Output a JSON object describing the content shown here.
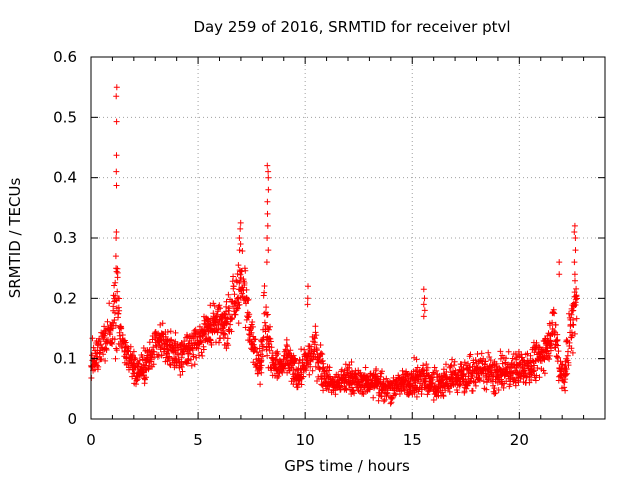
{
  "chart_data": {
    "type": "scatter",
    "title": "Day 259 of 2016, SRMTID for receiver ptvl",
    "xlabel": "GPS time / hours",
    "ylabel": "SRMTID / TECUs",
    "xlim": [
      0,
      24
    ],
    "ylim": [
      0,
      0.6
    ],
    "xticks": [
      0,
      5,
      10,
      15,
      20
    ],
    "yticks": [
      0,
      0.1,
      0.2,
      0.3,
      0.4,
      0.5,
      0.6
    ],
    "xtick_labels": [
      "0",
      "5",
      "10",
      "15",
      "20"
    ],
    "ytick_labels": [
      "0",
      "0.1",
      "0.2",
      "0.3",
      "0.4",
      "0.5",
      "0.6"
    ],
    "grid": true,
    "marker": "+",
    "series": [
      {
        "name": "SRMTID",
        "color": "#ff0000",
        "profile_description": "baseline level (TECU) and spread vs. GPS hour; points sampled densely along this profile",
        "profile": {
          "x": [
            0.0,
            0.3,
            0.6,
            0.9,
            1.1,
            1.2,
            1.3,
            1.5,
            1.8,
            2.2,
            2.6,
            3.0,
            3.4,
            3.8,
            4.2,
            4.6,
            5.0,
            5.4,
            5.8,
            6.2,
            6.5,
            6.8,
            7.0,
            7.2,
            7.6,
            7.9,
            8.1,
            8.3,
            8.5,
            8.8,
            9.2,
            9.6,
            10.0,
            10.4,
            10.8,
            11.2,
            11.6,
            12.0,
            12.5,
            13.0,
            13.5,
            14.0,
            14.5,
            15.0,
            15.5,
            16.0,
            16.5,
            17.0,
            17.5,
            18.0,
            18.5,
            19.0,
            19.5,
            20.0,
            20.5,
            21.0,
            21.3,
            21.6,
            21.9,
            22.1,
            22.3,
            22.5,
            22.7
          ],
          "level": [
            0.09,
            0.11,
            0.13,
            0.14,
            0.18,
            0.2,
            0.17,
            0.12,
            0.1,
            0.08,
            0.09,
            0.12,
            0.13,
            0.11,
            0.1,
            0.12,
            0.13,
            0.15,
            0.16,
            0.15,
            0.17,
            0.2,
            0.23,
            0.21,
            0.12,
            0.09,
            0.17,
            0.13,
            0.1,
            0.08,
            0.1,
            0.07,
            0.09,
            0.12,
            0.08,
            0.06,
            0.06,
            0.07,
            0.06,
            0.06,
            0.06,
            0.05,
            0.06,
            0.06,
            0.07,
            0.06,
            0.06,
            0.07,
            0.07,
            0.08,
            0.08,
            0.07,
            0.08,
            0.08,
            0.09,
            0.1,
            0.12,
            0.16,
            0.08,
            0.07,
            0.12,
            0.17,
            0.2
          ],
          "spread": [
            0.03,
            0.03,
            0.03,
            0.04,
            0.06,
            0.08,
            0.05,
            0.03,
            0.03,
            0.03,
            0.03,
            0.03,
            0.03,
            0.03,
            0.03,
            0.03,
            0.03,
            0.03,
            0.04,
            0.03,
            0.04,
            0.05,
            0.06,
            0.05,
            0.03,
            0.03,
            0.08,
            0.05,
            0.03,
            0.03,
            0.03,
            0.03,
            0.03,
            0.04,
            0.03,
            0.02,
            0.02,
            0.03,
            0.02,
            0.02,
            0.03,
            0.02,
            0.02,
            0.03,
            0.03,
            0.03,
            0.03,
            0.03,
            0.03,
            0.03,
            0.03,
            0.03,
            0.03,
            0.03,
            0.03,
            0.03,
            0.03,
            0.04,
            0.03,
            0.03,
            0.05,
            0.06,
            0.05
          ]
        },
        "spikes": [
          {
            "x": 1.2,
            "y": [
              0.55,
              0.535,
              0.493,
              0.437,
              0.41,
              0.387,
              0.31,
              0.3,
              0.27,
              0.25
            ]
          },
          {
            "x": 6.95,
            "y": [
              0.325,
              0.315,
              0.3,
              0.29,
              0.28
            ]
          },
          {
            "x": 8.25,
            "y": [
              0.42,
              0.41,
              0.4,
              0.38,
              0.36,
              0.34,
              0.32,
              0.3,
              0.28,
              0.26
            ]
          },
          {
            "x": 10.15,
            "y": [
              0.22,
              0.2,
              0.19
            ]
          },
          {
            "x": 15.55,
            "y": [
              0.215,
              0.2,
              0.19,
              0.18,
              0.17
            ]
          },
          {
            "x": 22.6,
            "y": [
              0.32,
              0.31,
              0.3,
              0.28,
              0.26,
              0.24
            ]
          },
          {
            "x": 21.85,
            "y": [
              0.26,
              0.24
            ]
          }
        ]
      }
    ]
  }
}
